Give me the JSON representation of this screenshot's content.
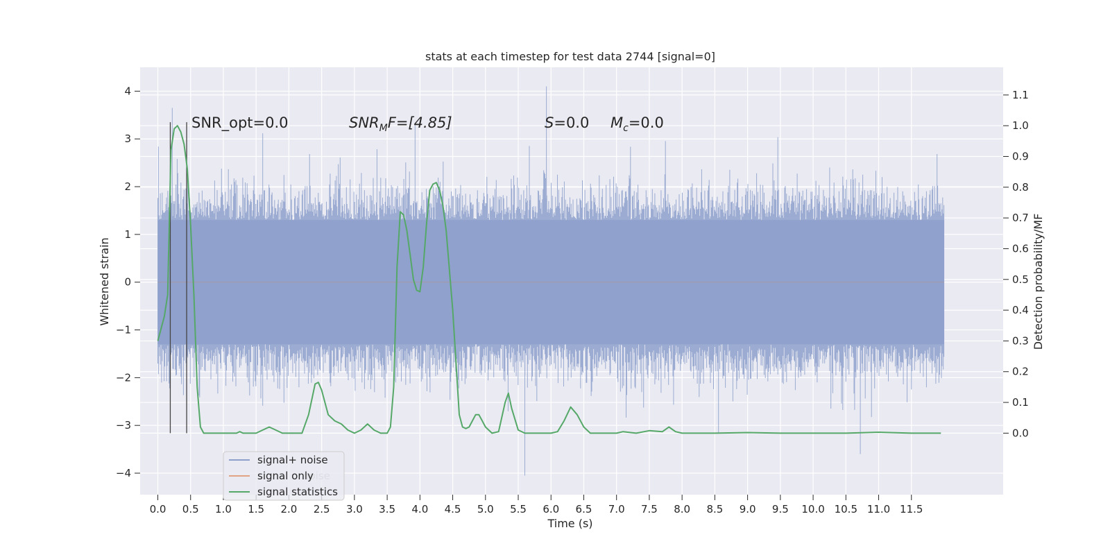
{
  "chart_data": {
    "type": "line",
    "title": "stats at each timestep for test data 2744 [signal=0]",
    "xlabel": "Time (s)",
    "ylabel": "Whitened strain",
    "ylabel_right": "Detection probability/MF",
    "xlim": [
      -0.27,
      12.9
    ],
    "ylim": [
      -4.45,
      4.5
    ],
    "ylim_right": [
      -0.2,
      1.19
    ],
    "x_ticks": [
      "0.0",
      "0.5",
      "1.0",
      "1.5",
      "2.0",
      "2.5",
      "3.0",
      "3.5",
      "4.0",
      "4.5",
      "5.0",
      "5.5",
      "6.0",
      "6.5",
      "7.0",
      "7.5",
      "8.0",
      "8.5",
      "9.0",
      "9.5",
      "10.0",
      "10.5",
      "11.0",
      "11.5"
    ],
    "y_ticks": [
      "4",
      "3",
      "2",
      "1",
      "0",
      "−1",
      "−2",
      "−3",
      "−4"
    ],
    "y_ticks_right": [
      "1.1",
      "1.0",
      "0.9",
      "0.8",
      "0.7",
      "0.6",
      "0.5",
      "0.4",
      "0.3",
      "0.2",
      "0.1",
      "0.0"
    ],
    "grid": true,
    "legend": {
      "placement": "lower-left",
      "entries": [
        {
          "label": "signal+ noise",
          "color": "#8da0cb"
        },
        {
          "label": "signal only",
          "color": "#dd8452"
        },
        {
          "label": "signal statistics",
          "color": "#55a868"
        }
      ],
      "occluded_text": "noise"
    },
    "annotations": {
      "snr_opt": "SNR_opt=0.0",
      "snr_mf_main": "SNR",
      "snr_mf_sub": "M",
      "snr_mf_rest": "F=[4.85]",
      "s_main": "S",
      "s_rest": "=0.0",
      "mc_main": "M",
      "mc_sub": "c",
      "mc_rest": "=0.0"
    },
    "vertical_lines_x": [
      0.19,
      0.44
    ],
    "strain_noise": {
      "x_range": [
        0.0,
        12.0
      ],
      "core_amplitude": 1.3,
      "envelope_upper": 1.95,
      "envelope_lower": -2.0,
      "notable_peaks": [
        {
          "x": 0.22,
          "y": 3.65
        },
        {
          "x": 5.93,
          "y": 4.1
        },
        {
          "x": 5.6,
          "y": -4.05
        },
        {
          "x": 10.72,
          "y": -3.6
        }
      ]
    },
    "series": [
      {
        "name": "signal statistics",
        "axis": "right",
        "x": [
          0.0,
          0.1,
          0.15,
          0.2,
          0.25,
          0.3,
          0.35,
          0.4,
          0.45,
          0.5,
          0.55,
          0.6,
          0.65,
          0.7,
          0.8,
          1.0,
          1.2,
          1.25,
          1.3,
          1.4,
          1.5,
          1.6,
          1.7,
          1.8,
          1.9,
          2.0,
          2.1,
          2.2,
          2.3,
          2.4,
          2.45,
          2.5,
          2.6,
          2.7,
          2.8,
          2.9,
          3.0,
          3.1,
          3.2,
          3.3,
          3.4,
          3.5,
          3.55,
          3.6,
          3.65,
          3.7,
          3.75,
          3.8,
          3.85,
          3.9,
          3.95,
          4.0,
          4.05,
          4.1,
          4.15,
          4.2,
          4.25,
          4.3,
          4.35,
          4.4,
          4.5,
          4.6,
          4.65,
          4.7,
          4.75,
          4.8,
          4.85,
          4.9,
          4.95,
          5.0,
          5.1,
          5.2,
          5.3,
          5.35,
          5.4,
          5.5,
          5.6,
          5.8,
          6.0,
          6.1,
          6.2,
          6.3,
          6.4,
          6.5,
          6.6,
          6.8,
          7.0,
          7.1,
          7.3,
          7.5,
          7.7,
          7.8,
          7.9,
          8.0,
          8.5,
          9.0,
          9.5,
          10.0,
          10.5,
          11.0,
          11.5,
          11.95
        ],
        "values": [
          0.3,
          0.38,
          0.45,
          0.92,
          0.99,
          1.0,
          0.98,
          0.94,
          0.86,
          0.68,
          0.45,
          0.15,
          0.02,
          0.0,
          0.0,
          0.0,
          0.0,
          0.005,
          0.0,
          0.0,
          0.0,
          0.01,
          0.02,
          0.01,
          0.0,
          0.0,
          0.0,
          0.0,
          0.06,
          0.16,
          0.165,
          0.14,
          0.06,
          0.04,
          0.03,
          0.01,
          0.0,
          0.01,
          0.03,
          0.01,
          0.0,
          0.0,
          0.02,
          0.15,
          0.54,
          0.72,
          0.71,
          0.66,
          0.58,
          0.5,
          0.465,
          0.46,
          0.54,
          0.68,
          0.79,
          0.81,
          0.815,
          0.79,
          0.74,
          0.66,
          0.4,
          0.06,
          0.02,
          0.015,
          0.02,
          0.04,
          0.06,
          0.06,
          0.04,
          0.02,
          0.0,
          0.005,
          0.1,
          0.13,
          0.08,
          0.01,
          0.0,
          0.0,
          0.0,
          0.005,
          0.04,
          0.085,
          0.06,
          0.02,
          0.0,
          0.0,
          0.0,
          0.005,
          0.0,
          0.008,
          0.005,
          0.02,
          0.005,
          0.0,
          0.0,
          0.002,
          0.0,
          0.0,
          0.0,
          0.003,
          0.0,
          0.0
        ]
      }
    ]
  }
}
